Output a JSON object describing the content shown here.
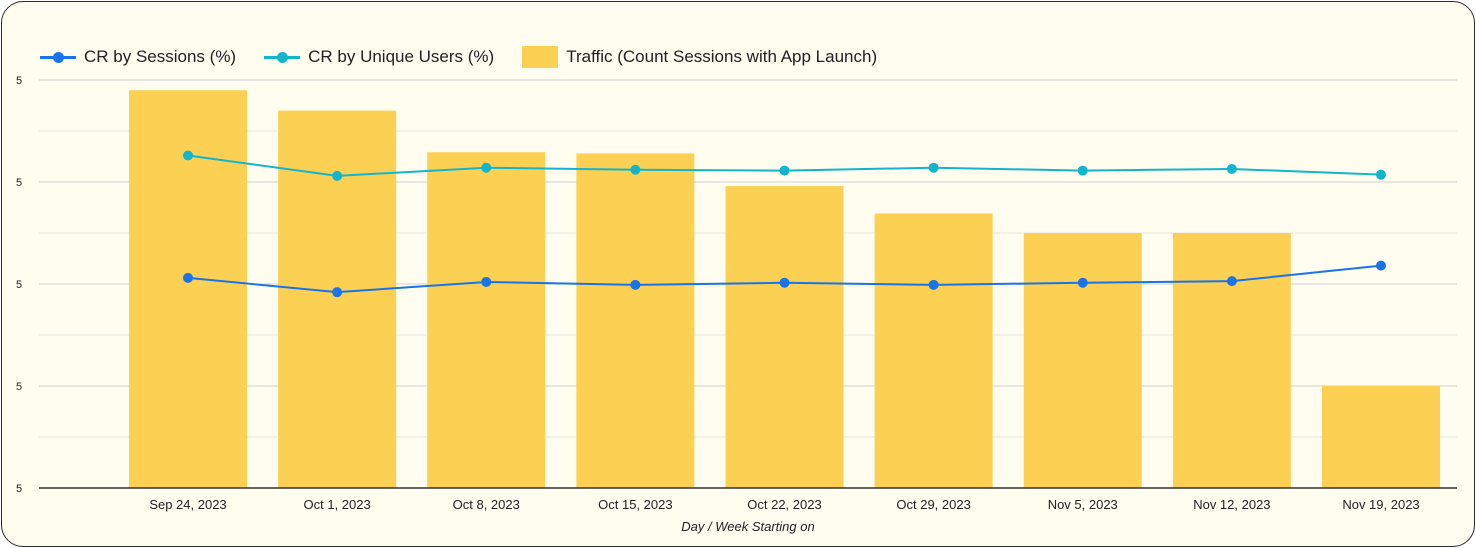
{
  "chart_data": {
    "type": "bar",
    "title": "",
    "legend_position": "top-left",
    "grid": true,
    "categories": [
      "Sep 24, 2023",
      "Oct 1, 2023",
      "Oct 8, 2023",
      "Oct 15, 2023",
      "Oct 22, 2023",
      "Oct 29, 2023",
      "Nov 5, 2023",
      "Nov 12, 2023",
      "Nov 19, 2023"
    ],
    "xlabel": "Day / Week Starting on",
    "ylabel": "",
    "ylim": [
      0,
      100
    ],
    "y_tick_labels": [
      "5",
      "5",
      "5",
      "5",
      "5"
    ],
    "series": [
      {
        "name": "CR by Sessions (%)",
        "type": "line",
        "color": "#1a73e8",
        "values": [
          51.5,
          48,
          50.5,
          49.8,
          50.3,
          49.8,
          50.3,
          50.7,
          54.5
        ]
      },
      {
        "name": "CR by Unique Users (%)",
        "type": "line",
        "color": "#12b5cb",
        "values": [
          81.5,
          76.5,
          78.5,
          78,
          77.8,
          78.5,
          77.8,
          78.2,
          76.8
        ]
      },
      {
        "name": "Traffic (Count Sessions with App Launch)",
        "type": "bar",
        "color": "#fcd153",
        "values": [
          97.5,
          92.5,
          82.3,
          82,
          74,
          67.3,
          62.5,
          62.5,
          25
        ]
      }
    ]
  }
}
